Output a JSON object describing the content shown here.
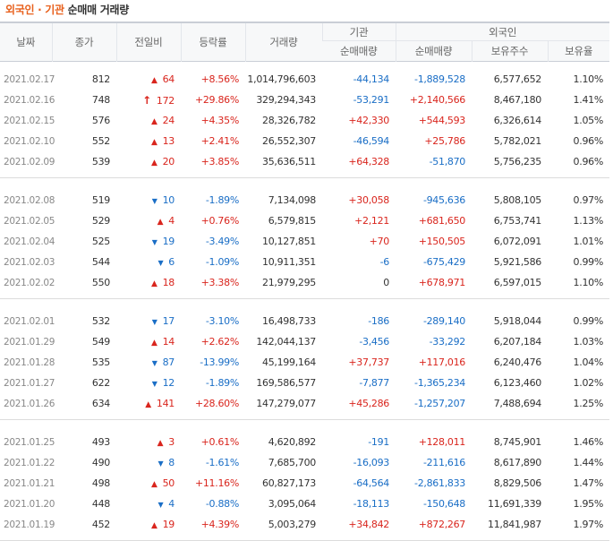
{
  "title": {
    "part1": "외국인 · 기관",
    "part2": "순매매 거래량"
  },
  "header": {
    "date": "날짜",
    "close": "종가",
    "change": "전일비",
    "rate": "등락률",
    "volume": "거래량",
    "institution": "기관",
    "foreign": "외국인",
    "inst_net": "순매매량",
    "foreign_net": "순매매량",
    "foreign_shares": "보유주수",
    "foreign_ratio": "보유율"
  },
  "colors": {
    "up": "#d9251d",
    "down": "#1a6ec6",
    "title_accent": "#e8601c"
  },
  "groups": [
    [
      {
        "date": "2021.02.17",
        "close": "812",
        "dir": "up",
        "change": "64",
        "rate": "+8.56%",
        "volume": "1,014,796,603",
        "inst": "-44,134",
        "foreign": "-1,889,528",
        "shares": "6,577,652",
        "ratio": "1.10%"
      },
      {
        "date": "2021.02.16",
        "close": "748",
        "dir": "limit",
        "change": "172",
        "rate": "+29.86%",
        "volume": "329,294,343",
        "inst": "-53,291",
        "foreign": "+2,140,566",
        "shares": "8,467,180",
        "ratio": "1.41%"
      },
      {
        "date": "2021.02.15",
        "close": "576",
        "dir": "up",
        "change": "24",
        "rate": "+4.35%",
        "volume": "28,326,782",
        "inst": "+42,330",
        "foreign": "+544,593",
        "shares": "6,326,614",
        "ratio": "1.05%"
      },
      {
        "date": "2021.02.10",
        "close": "552",
        "dir": "up",
        "change": "13",
        "rate": "+2.41%",
        "volume": "26,552,307",
        "inst": "-46,594",
        "foreign": "+25,786",
        "shares": "5,782,021",
        "ratio": "0.96%"
      },
      {
        "date": "2021.02.09",
        "close": "539",
        "dir": "up",
        "change": "20",
        "rate": "+3.85%",
        "volume": "35,636,511",
        "inst": "+64,328",
        "foreign": "-51,870",
        "shares": "5,756,235",
        "ratio": "0.96%"
      }
    ],
    [
      {
        "date": "2021.02.08",
        "close": "519",
        "dir": "down",
        "change": "10",
        "rate": "-1.89%",
        "volume": "7,134,098",
        "inst": "+30,058",
        "foreign": "-945,636",
        "shares": "5,808,105",
        "ratio": "0.97%"
      },
      {
        "date": "2021.02.05",
        "close": "529",
        "dir": "up",
        "change": "4",
        "rate": "+0.76%",
        "volume": "6,579,815",
        "inst": "+2,121",
        "foreign": "+681,650",
        "shares": "6,753,741",
        "ratio": "1.13%"
      },
      {
        "date": "2021.02.04",
        "close": "525",
        "dir": "down",
        "change": "19",
        "rate": "-3.49%",
        "volume": "10,127,851",
        "inst": "+70",
        "foreign": "+150,505",
        "shares": "6,072,091",
        "ratio": "1.01%"
      },
      {
        "date": "2021.02.03",
        "close": "544",
        "dir": "down",
        "change": "6",
        "rate": "-1.09%",
        "volume": "10,911,351",
        "inst": "-6",
        "foreign": "-675,429",
        "shares": "5,921,586",
        "ratio": "0.99%"
      },
      {
        "date": "2021.02.02",
        "close": "550",
        "dir": "up",
        "change": "18",
        "rate": "+3.38%",
        "volume": "21,979,295",
        "inst": "0",
        "foreign": "+678,971",
        "shares": "6,597,015",
        "ratio": "1.10%"
      }
    ],
    [
      {
        "date": "2021.02.01",
        "close": "532",
        "dir": "down",
        "change": "17",
        "rate": "-3.10%",
        "volume": "16,498,733",
        "inst": "-186",
        "foreign": "-289,140",
        "shares": "5,918,044",
        "ratio": "0.99%"
      },
      {
        "date": "2021.01.29",
        "close": "549",
        "dir": "up",
        "change": "14",
        "rate": "+2.62%",
        "volume": "142,044,137",
        "inst": "-3,456",
        "foreign": "-33,292",
        "shares": "6,207,184",
        "ratio": "1.03%"
      },
      {
        "date": "2021.01.28",
        "close": "535",
        "dir": "down",
        "change": "87",
        "rate": "-13.99%",
        "volume": "45,199,164",
        "inst": "+37,737",
        "foreign": "+117,016",
        "shares": "6,240,476",
        "ratio": "1.04%"
      },
      {
        "date": "2021.01.27",
        "close": "622",
        "dir": "down",
        "change": "12",
        "rate": "-1.89%",
        "volume": "169,586,577",
        "inst": "-7,877",
        "foreign": "-1,365,234",
        "shares": "6,123,460",
        "ratio": "1.02%"
      },
      {
        "date": "2021.01.26",
        "close": "634",
        "dir": "up",
        "change": "141",
        "rate": "+28.60%",
        "volume": "147,279,077",
        "inst": "+45,286",
        "foreign": "-1,257,207",
        "shares": "7,488,694",
        "ratio": "1.25%"
      }
    ],
    [
      {
        "date": "2021.01.25",
        "close": "493",
        "dir": "up",
        "change": "3",
        "rate": "+0.61%",
        "volume": "4,620,892",
        "inst": "-191",
        "foreign": "+128,011",
        "shares": "8,745,901",
        "ratio": "1.46%"
      },
      {
        "date": "2021.01.22",
        "close": "490",
        "dir": "down",
        "change": "8",
        "rate": "-1.61%",
        "volume": "7,685,700",
        "inst": "-16,093",
        "foreign": "-211,616",
        "shares": "8,617,890",
        "ratio": "1.44%"
      },
      {
        "date": "2021.01.21",
        "close": "498",
        "dir": "up",
        "change": "50",
        "rate": "+11.16%",
        "volume": "60,827,173",
        "inst": "-64,564",
        "foreign": "-2,861,833",
        "shares": "8,829,506",
        "ratio": "1.47%"
      },
      {
        "date": "2021.01.20",
        "close": "448",
        "dir": "down",
        "change": "4",
        "rate": "-0.88%",
        "volume": "3,095,064",
        "inst": "-18,113",
        "foreign": "-150,648",
        "shares": "11,691,339",
        "ratio": "1.95%"
      },
      {
        "date": "2021.01.19",
        "close": "452",
        "dir": "up",
        "change": "19",
        "rate": "+4.39%",
        "volume": "5,003,279",
        "inst": "+34,842",
        "foreign": "+872,267",
        "shares": "11,841,987",
        "ratio": "1.97%"
      }
    ]
  ]
}
